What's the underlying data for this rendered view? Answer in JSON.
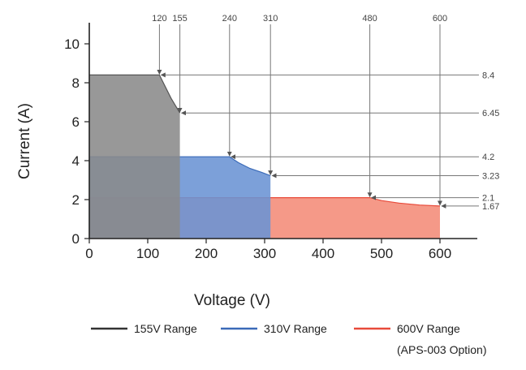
{
  "chart_data": {
    "type": "area",
    "xlabel": "Voltage (V)",
    "ylabel": "Current (A)",
    "xlim": [
      0,
      600
    ],
    "ylim": [
      0,
      10
    ],
    "x_ticks": [
      "0",
      "100",
      "200",
      "300",
      "400",
      "500",
      "600"
    ],
    "y_ticks": [
      "0",
      "2",
      "4",
      "6",
      "8",
      "10"
    ],
    "grid": false,
    "legend_position": "bottom",
    "series": [
      {
        "name": "155V Range",
        "color": "#555555",
        "fill": "#8a8a8a",
        "points": [
          [
            0,
            8.4
          ],
          [
            120,
            8.4
          ],
          [
            130,
            7.8
          ],
          [
            140,
            7.2
          ],
          [
            155,
            6.45
          ],
          [
            155,
            0
          ]
        ]
      },
      {
        "name": "310V Range",
        "color": "#3a6ab8",
        "fill": "#6a93d4",
        "points": [
          [
            0,
            4.2
          ],
          [
            240,
            4.2
          ],
          [
            255,
            3.9
          ],
          [
            275,
            3.6
          ],
          [
            295,
            3.4
          ],
          [
            310,
            3.23
          ],
          [
            310,
            0
          ]
        ]
      },
      {
        "name": "600V Range",
        "color": "#e84a3a",
        "fill": "#f48b78",
        "points": [
          [
            0,
            2.1
          ],
          [
            480,
            2.1
          ],
          [
            500,
            1.95
          ],
          [
            530,
            1.82
          ],
          [
            565,
            1.72
          ],
          [
            600,
            1.67
          ],
          [
            600,
            0
          ]
        ]
      }
    ],
    "x_annotations": [
      "120",
      "155",
      "240",
      "310",
      "480",
      "600"
    ],
    "y_annotations": [
      "8.4",
      "6.45",
      "4.2",
      "3.23",
      "2.1",
      "1.67"
    ],
    "legend": [
      {
        "label": "155V Range",
        "color": "#333333"
      },
      {
        "label": "310V Range",
        "color": "#3a6ab8"
      },
      {
        "label": "600V Range",
        "color": "#e84a3a",
        "note": "(APS-003 Option)"
      }
    ]
  }
}
